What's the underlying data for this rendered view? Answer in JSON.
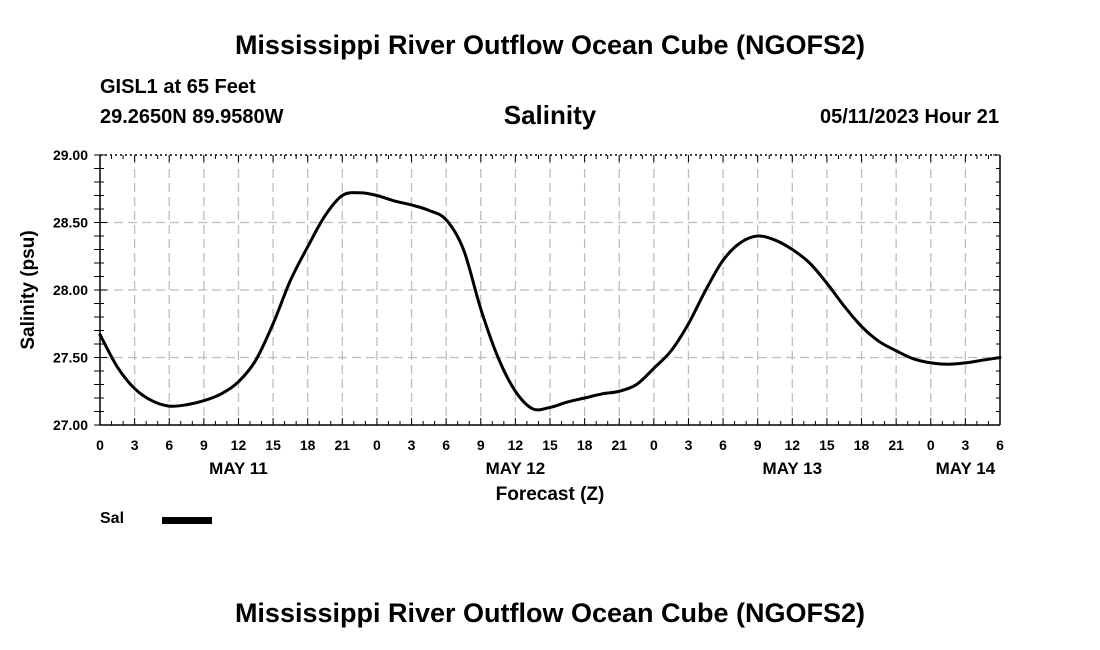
{
  "header": {
    "title": "Mississippi River Outflow Ocean Cube (NGOFS2)",
    "station": "GISL1 at 65 Feet",
    "coordinates": "29.2650N  89.9580W",
    "variable": "Salinity",
    "datetime": "05/11/2023 Hour 21"
  },
  "footer": {
    "title": "Mississippi River Outflow Ocean Cube (NGOFS2)"
  },
  "legend": {
    "items": [
      {
        "label": "Sal",
        "color": "#000000"
      }
    ]
  },
  "chart_data": {
    "type": "line",
    "title": "Salinity",
    "xlabel": "Forecast (Z)",
    "ylabel": "Salinity (psu)",
    "xlim": [
      0,
      78
    ],
    "ylim": [
      27.0,
      29.0
    ],
    "y_ticks": [
      "27.00",
      "27.50",
      "28.00",
      "28.50",
      "29.00"
    ],
    "y_tick_values": [
      27.0,
      27.5,
      28.0,
      28.5,
      29.0
    ],
    "x_tick_values": [
      0,
      3,
      6,
      9,
      12,
      15,
      18,
      21,
      24,
      27,
      30,
      33,
      36,
      39,
      42,
      45,
      48,
      51,
      54,
      57,
      60,
      63,
      66,
      69,
      72,
      75,
      78
    ],
    "x_tick_labels": [
      "0",
      "3",
      "6",
      "9",
      "12",
      "15",
      "18",
      "21",
      "0",
      "3",
      "6",
      "9",
      "12",
      "15",
      "18",
      "21",
      "0",
      "3",
      "6",
      "9",
      "12",
      "15",
      "18",
      "21",
      "0",
      "3",
      "6"
    ],
    "date_labels": [
      {
        "label": "MAY 11",
        "hour": 12
      },
      {
        "label": "MAY 12",
        "hour": 36
      },
      {
        "label": "MAY 13",
        "hour": 60
      },
      {
        "label": "MAY 14",
        "hour": 75
      }
    ],
    "grid": true,
    "series": [
      {
        "name": "Sal",
        "color": "#000000",
        "x": [
          0,
          1.5,
          3,
          4.5,
          6,
          7.5,
          9,
          10.5,
          12,
          13.5,
          15,
          16.5,
          18,
          19.5,
          21,
          22.5,
          24,
          25.5,
          27,
          28.5,
          30,
          31.5,
          33,
          34.5,
          36,
          37.5,
          39,
          40.5,
          42,
          43.5,
          45,
          46.5,
          48,
          49.5,
          51,
          52.5,
          54,
          55.5,
          57,
          58.5,
          60,
          61.5,
          63,
          64.5,
          66,
          67.5,
          69,
          70.5,
          72,
          73.5,
          75,
          76.5,
          78
        ],
        "values": [
          27.67,
          27.43,
          27.27,
          27.18,
          27.14,
          27.15,
          27.18,
          27.23,
          27.32,
          27.48,
          27.75,
          28.07,
          28.32,
          28.55,
          28.7,
          28.72,
          28.7,
          28.66,
          28.63,
          28.59,
          28.52,
          28.3,
          27.86,
          27.5,
          27.25,
          27.12,
          27.13,
          27.17,
          27.2,
          27.23,
          27.25,
          27.3,
          27.42,
          27.55,
          27.75,
          28.0,
          28.22,
          28.35,
          28.4,
          28.37,
          28.3,
          28.2,
          28.05,
          27.88,
          27.73,
          27.62,
          27.55,
          27.49,
          27.46,
          27.45,
          27.46,
          27.48,
          27.5
        ]
      }
    ]
  }
}
